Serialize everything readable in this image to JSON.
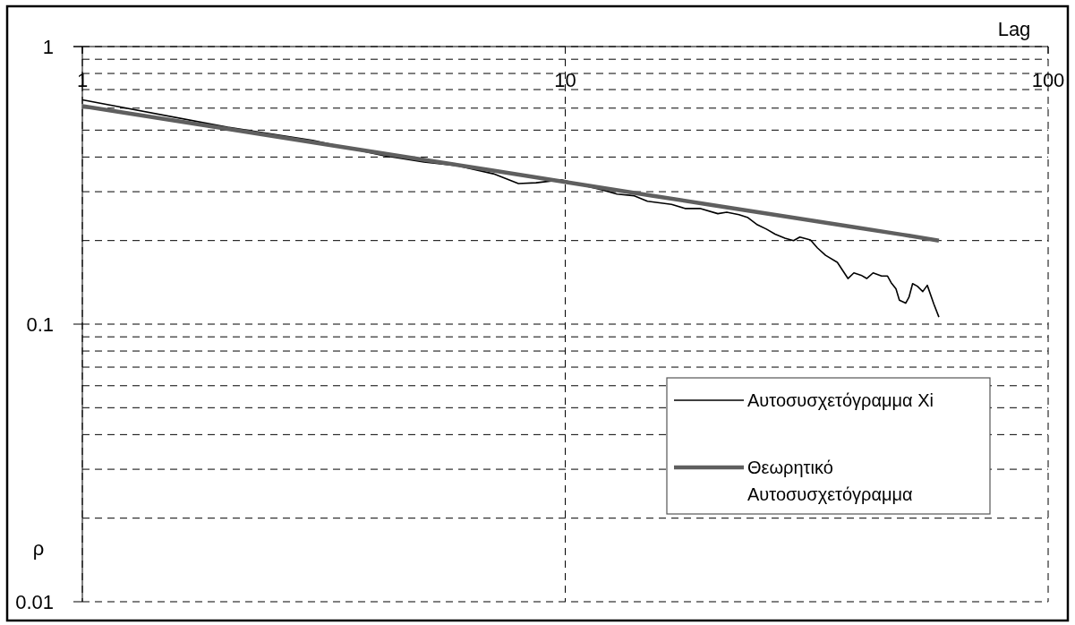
{
  "chart_data": {
    "type": "line",
    "xlabel": "Lag",
    "ylabel": "ρ",
    "log": "xy",
    "xlim": [
      1,
      100
    ],
    "ylim": [
      0.01,
      1
    ],
    "xticks": [
      1,
      10,
      100
    ],
    "yticks": [
      0.01,
      {
        "value": 0.02,
        "label": null
      },
      {
        "value": 0.03,
        "label": null
      },
      {
        "value": 0.04,
        "label": null
      },
      {
        "value": 0.05,
        "label": null
      },
      {
        "value": 0.06,
        "label": null
      },
      {
        "value": 0.07,
        "label": null
      },
      {
        "value": 0.08,
        "label": null
      },
      {
        "value": 0.09,
        "label": null
      },
      0.1,
      {
        "value": 0.2,
        "label": null
      },
      {
        "value": 0.3,
        "label": null
      },
      {
        "value": 0.4,
        "label": null
      },
      {
        "value": 0.5,
        "label": null
      },
      {
        "value": 0.6,
        "label": null
      },
      {
        "value": 0.7,
        "label": null
      },
      {
        "value": 0.8,
        "label": null
      },
      {
        "value": 0.9,
        "label": null
      },
      1
    ],
    "grid": true,
    "legend": "bottom right",
    "line_style": "solid",
    "series": [
      {
        "name": "Αυτοσυσχετόγραμμα Xi",
        "color": "#000000",
        "x": [
          1,
          2,
          3,
          4.2,
          5.1,
          6,
          7.1,
          8,
          8.7,
          9.8,
          11.9,
          12.8,
          13.9,
          14.8,
          16.6,
          17.7,
          19,
          20.7,
          21.6,
          22.9,
          23.9,
          25,
          26.1,
          27.2,
          28.5,
          29.7,
          30.6,
          32.2,
          33.3,
          34.6,
          36.6,
          38.5,
          39.6,
          41,
          42.1,
          43.4,
          45.2,
          46.5,
          47.3,
          48.4,
          49.2,
          50.7,
          51.5,
          52.4,
          53.6,
          55,
          56.2,
          58,
          59.4
        ],
        "values": [
          0.643,
          0.512,
          0.459,
          0.405,
          0.384,
          0.372,
          0.348,
          0.321,
          0.323,
          0.331,
          0.305,
          0.294,
          0.29,
          0.277,
          0.27,
          0.261,
          0.261,
          0.25,
          0.253,
          0.248,
          0.242,
          0.228,
          0.22,
          0.211,
          0.204,
          0.2,
          0.206,
          0.201,
          0.188,
          0.177,
          0.167,
          0.146,
          0.153,
          0.15,
          0.146,
          0.153,
          0.149,
          0.149,
          0.141,
          0.134,
          0.122,
          0.119,
          0.125,
          0.14,
          0.137,
          0.131,
          0.138,
          0.118,
          0.106
        ]
      },
      {
        "name": "Θεωρητικό Αυτοσυσχετόγραμμα",
        "color": "#5f5f5f",
        "x": [
          1,
          2,
          3,
          5,
          7,
          10,
          15,
          20,
          30,
          40,
          50,
          59.4
        ],
        "values": [
          0.61,
          0.505,
          0.452,
          0.393,
          0.359,
          0.325,
          0.291,
          0.269,
          0.241,
          0.223,
          0.21,
          0.2
        ]
      }
    ]
  }
}
